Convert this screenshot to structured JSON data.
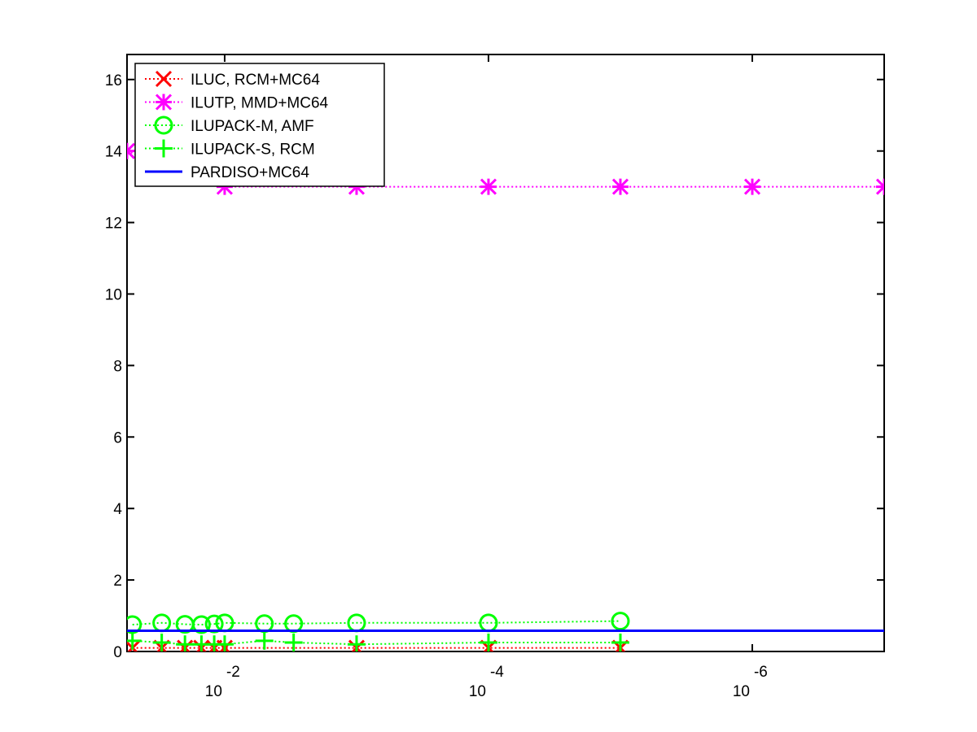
{
  "chart_data": {
    "type": "line",
    "xscale": "log",
    "xdirection": "reversed",
    "xlim": [
      0.055,
      1e-07
    ],
    "ylim": [
      0,
      16.7
    ],
    "grid": false,
    "legend_placement": "top-left",
    "xticks": [
      {
        "value": 0.01,
        "base": "10",
        "exponent": "-2"
      },
      {
        "value": 0.0001,
        "base": "10",
        "exponent": "-4"
      },
      {
        "value": 1e-06,
        "base": "10",
        "exponent": "-6"
      }
    ],
    "yticks": [
      {
        "value": 0,
        "label": "0"
      },
      {
        "value": 2,
        "label": "2"
      },
      {
        "value": 4,
        "label": "4"
      },
      {
        "value": 6,
        "label": "6"
      },
      {
        "value": 8,
        "label": "8"
      },
      {
        "value": 10,
        "label": "10"
      },
      {
        "value": 12,
        "label": "12"
      },
      {
        "value": 14,
        "label": "14"
      },
      {
        "value": 16,
        "label": "16"
      }
    ],
    "series": [
      {
        "name": "ILUC, RCM+MC64",
        "color": "#ff0000",
        "marker": "x",
        "linestyle": "dotted",
        "x": [
          0.05,
          0.03,
          0.02,
          0.015,
          0.012,
          0.01,
          0.001,
          0.0001,
          1e-05
        ],
        "y": [
          0.1,
          0.1,
          0.1,
          0.1,
          0.1,
          0.1,
          0.1,
          0.1,
          0.1
        ]
      },
      {
        "name": "ILUTP, MMD+MC64",
        "color": "#ff00ff",
        "marker": "asterisk",
        "linestyle": "dotted",
        "x": [
          0.055,
          0.01,
          0.001,
          0.0001,
          1e-05,
          1e-06,
          1e-07
        ],
        "y": [
          14.0,
          13.0,
          13.0,
          13.0,
          13.0,
          13.0,
          13.0
        ]
      },
      {
        "name": "ILUPACK-M, AMF",
        "color": "#00ff00",
        "marker": "circle",
        "linestyle": "dotted",
        "x": [
          0.05,
          0.03,
          0.02,
          0.015,
          0.012,
          0.01,
          0.005,
          0.003,
          0.001,
          0.0001,
          1e-05
        ],
        "y": [
          0.75,
          0.8,
          0.76,
          0.75,
          0.77,
          0.8,
          0.78,
          0.78,
          0.8,
          0.8,
          0.85
        ]
      },
      {
        "name": "ILUPACK-S, RCM",
        "color": "#00ff00",
        "marker": "plus",
        "linestyle": "dotted",
        "x": [
          0.05,
          0.03,
          0.02,
          0.015,
          0.012,
          0.01,
          0.005,
          0.003,
          0.001,
          0.0001,
          1e-05
        ],
        "y": [
          0.3,
          0.25,
          0.2,
          0.2,
          0.2,
          0.2,
          0.3,
          0.25,
          0.2,
          0.25,
          0.25
        ]
      },
      {
        "name": "PARDISO+MC64",
        "color": "#0000ff",
        "marker": "none",
        "linestyle": "solid",
        "x": [
          0.055,
          1e-07
        ],
        "y": [
          0.58,
          0.58
        ]
      }
    ]
  }
}
